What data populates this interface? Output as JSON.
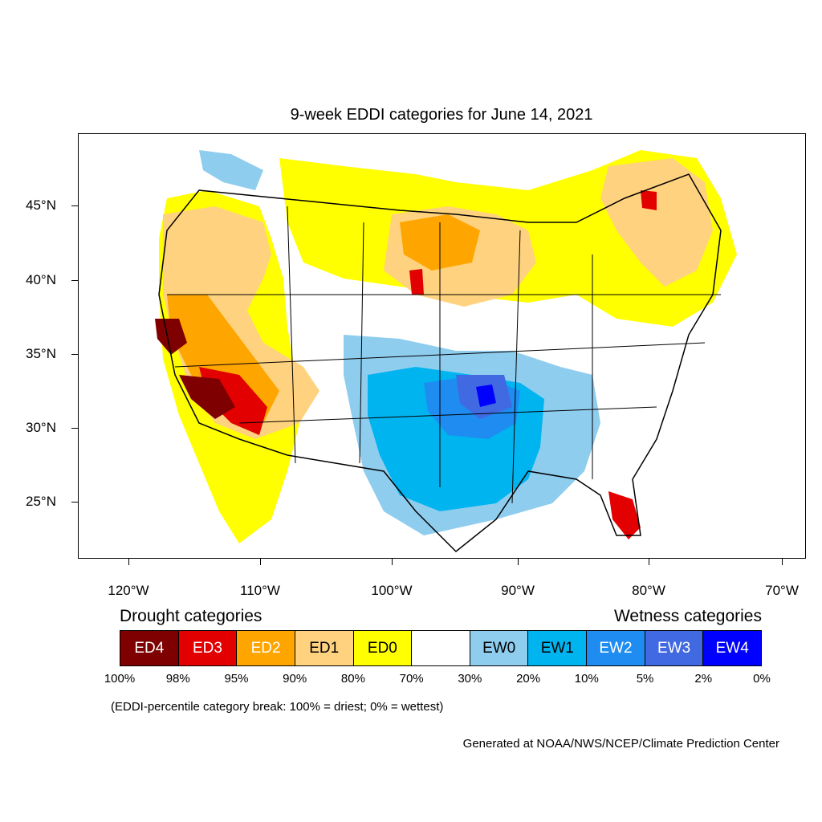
{
  "title": "9-week EDDI categories for June 14, 2021",
  "axes": {
    "y_labels": [
      "45°N",
      "40°N",
      "35°N",
      "30°N",
      "25°N"
    ],
    "x_labels": [
      "120°W",
      "110°W",
      "100°W",
      "90°W",
      "80°W",
      "70°W"
    ]
  },
  "legend": {
    "drought_heading": "Drought categories",
    "wetness_heading": "Wetness categories",
    "categories": [
      {
        "label": "ED4",
        "color": "#7f0000",
        "text_color": "#ffffff"
      },
      {
        "label": "ED3",
        "color": "#e20000",
        "text_color": "#ffffff"
      },
      {
        "label": "ED2",
        "color": "#ffa500",
        "text_color": "#ffffff"
      },
      {
        "label": "ED1",
        "color": "#ffd27f",
        "text_color": "#000000"
      },
      {
        "label": "ED0",
        "color": "#ffff00",
        "text_color": "#000000"
      },
      {
        "label": "",
        "color": "#ffffff",
        "text_color": "#000000"
      },
      {
        "label": "EW0",
        "color": "#8fcdef",
        "text_color": "#000000"
      },
      {
        "label": "EW1",
        "color": "#00b4f0",
        "text_color": "#000000"
      },
      {
        "label": "EW2",
        "color": "#1e8cf0",
        "text_color": "#ffffff"
      },
      {
        "label": "EW3",
        "color": "#4169e1",
        "text_color": "#ffffff"
      },
      {
        "label": "EW4",
        "color": "#0000ff",
        "text_color": "#ffffff"
      }
    ],
    "breaks": [
      "100%",
      "98%",
      "95%",
      "90%",
      "80%",
      "70%",
      "30%",
      "20%",
      "10%",
      "5%",
      "2%",
      "0%"
    ]
  },
  "note": "(EDDI-percentile category break: 100% = driest; 0% = wettest)",
  "credit": "Generated at NOAA/NWS/NCEP/Climate Prediction Center"
}
